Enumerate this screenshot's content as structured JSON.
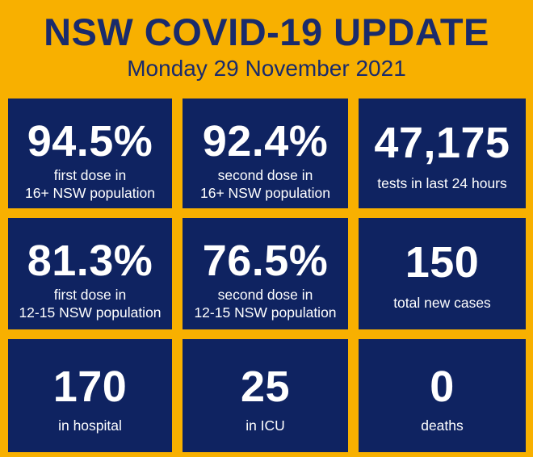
{
  "header": {
    "title": "NSW COVID-19 UPDATE",
    "date": "Monday 29 November 2021"
  },
  "stats": [
    {
      "value": "94.5%",
      "label_line1": "first dose in",
      "label_line2": "16+ NSW population"
    },
    {
      "value": "92.4%",
      "label_line1": "second dose in",
      "label_line2": "16+ NSW population"
    },
    {
      "value": "47,175",
      "label": "tests in last 24 hours"
    },
    {
      "value": "81.3%",
      "label_line1": "first dose in",
      "label_line2": "12-15 NSW population"
    },
    {
      "value": "76.5%",
      "label_line1": "second dose in",
      "label_line2": "12-15 NSW population"
    },
    {
      "value": "150",
      "label": "total new cases"
    },
    {
      "value": "170",
      "label": "in hospital"
    },
    {
      "value": "25",
      "label": "in ICU"
    },
    {
      "value": "0",
      "label": "deaths"
    }
  ],
  "colors": {
    "background": "#F8B000",
    "card": "#0F2361",
    "title": "#1A2B6B",
    "card_text": "#FFFFFF"
  }
}
